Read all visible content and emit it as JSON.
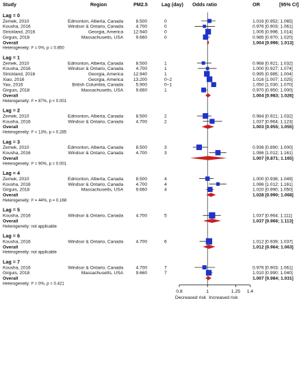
{
  "chart_data": {
    "type": "forest",
    "columns": {
      "study": "Study",
      "region": "Region",
      "pm": "PM2.5",
      "lag": "Lag (day)",
      "plot": "Odds ratio",
      "or": "OR",
      "ci": "[95% CI]"
    },
    "overall_label": "Overall",
    "heterogeneity_label": "Heterogeneity:",
    "x_scale": "log",
    "x_range": [
      0.75,
      1.42
    ],
    "x_ticks": [
      {
        "value": 0.8,
        "label": "0.8"
      },
      {
        "value": 1,
        "label": "1"
      },
      {
        "value": 1.25,
        "label": "1.25"
      },
      {
        "value": 1.4,
        "label": "1.4"
      }
    ],
    "reference_line": 1,
    "left_direction_label": "Decreased risk",
    "right_direction_label": "Increased risk",
    "colors": {
      "study_box": "#1f33c8",
      "overall_diamond": "#cc1f1f"
    },
    "groups": [
      {
        "title": "Lag = 0",
        "studies": [
          {
            "study": "Zemek, 2010",
            "region": "Edmonton, Alberta, Canada",
            "pm": "8.500",
            "lag": "0",
            "or": 1.016,
            "lo": 0.952,
            "hi": 1.065,
            "ci_text": "1.016 [0.952; 1.065]",
            "weight": 0.25
          },
          {
            "study": "Kousha, 2016",
            "region": "Windsor & Ontario, Canada",
            "pm": "4.700",
            "lag": "0",
            "or": 0.976,
            "lo": 0.903,
            "hi": 1.061,
            "ci_text": "0.976 [0.903; 1.061]",
            "weight": 0.12
          },
          {
            "study": "Strickland, 2016",
            "region": "Georgia, America",
            "pm": "12.940",
            "lag": "0",
            "or": 1.005,
            "lo": 0.996,
            "hi": 1.014,
            "ci_text": "1.005 [0.996; 1.014]",
            "weight": 0.75
          },
          {
            "study": "Girguis, 2018",
            "region": "Massachusetts, USA",
            "pm": "9.660",
            "lag": "0",
            "or": 0.985,
            "lo": 0.97,
            "hi": 1.02,
            "ci_text": "0.985 [0.970; 1.020]",
            "weight": 0.6
          }
        ],
        "overall": {
          "or": 1.004,
          "lo": 0.996,
          "hi": 1.013,
          "ci_text": "1.004 [0.996; 1.013]"
        },
        "heterogeneity": "I² = 0%, p = 0.850"
      },
      {
        "title": "Lag = 1",
        "studies": [
          {
            "study": "Zemek, 2010",
            "region": "Edmonton, Alberta, Canada",
            "pm": "8.500",
            "lag": "1",
            "or": 0.968,
            "lo": 0.921,
            "hi": 1.032,
            "ci_text": "0.968 [0.921; 1.032]",
            "weight": 0.15
          },
          {
            "study": "Kousha, 2016",
            "region": "Windsor & Ontario, Canada",
            "pm": "4.700",
            "lag": "1",
            "or": 1.0,
            "lo": 0.927,
            "hi": 1.074,
            "ci_text": "1.000 [0.927; 1.074]",
            "weight": 0.1
          },
          {
            "study": "Strickland, 2016",
            "region": "Georgia, America",
            "pm": "12.940",
            "lag": "1",
            "or": 0.995,
            "lo": 0.985,
            "hi": 1.004,
            "ci_text": "0.995 [0.985; 1.004]",
            "weight": 0.75
          },
          {
            "study": "Xiao, 2016",
            "region": "Georgia, America",
            "pm": "13.200",
            "lag": "0~2",
            "or": 1.016,
            "lo": 1.007,
            "hi": 1.025,
            "ci_text": "1.016 [1.007; 1.025]",
            "weight": 0.75
          },
          {
            "study": "Yao, 2016",
            "region": "British Columbia, Canada",
            "pm": "5.900",
            "lag": "0~1",
            "or": 1.05,
            "lo": 1.03,
            "hi": 1.07,
            "ci_text": "1.050 [1.030; 1.070]",
            "weight": 0.5
          },
          {
            "study": "Girguis, 2018",
            "region": "Massachusetts, USA",
            "pm": "9.660",
            "lag": "1",
            "or": 0.97,
            "lo": 0.95,
            "hi": 1.0,
            "ci_text": "0.970 [0.950; 1.000]",
            "weight": 0.45
          }
        ],
        "overall": {
          "or": 1.004,
          "lo": 0.983,
          "hi": 1.026,
          "ci_text": "1.004 [0.983; 1.026]"
        },
        "heterogeneity": "I² = 87%, p < 0.001"
      },
      {
        "title": "Lag = 2",
        "studies": [
          {
            "study": "Zemek, 2010",
            "region": "Edmonton, Alberta, Canada",
            "pm": "8.500",
            "lag": "2",
            "or": 0.984,
            "lo": 0.921,
            "hi": 1.032,
            "ci_text": "0.984 [0.921; 1.032]",
            "weight": 0.7
          },
          {
            "study": "Kousha, 2016",
            "region": "Windsor & Ontario, Canada",
            "pm": "4.700",
            "lag": "2",
            "or": 1.037,
            "lo": 0.964,
            "hi": 1.123,
            "ci_text": "1.037 [0.964; 1.123]",
            "weight": 0.5
          }
        ],
        "overall": {
          "or": 1.003,
          "lo": 0.955,
          "hi": 1.055,
          "ci_text": "1.003 [0.955; 1.055]"
        },
        "heterogeneity": "I² = 13%, p = 0.285"
      },
      {
        "title": "Lag = 3",
        "studies": [
          {
            "study": "Zemek, 2010",
            "region": "Edmonton, Alberta, Canada",
            "pm": "8.500",
            "lag": "3",
            "or": 0.936,
            "lo": 0.89,
            "hi": 1.0,
            "ci_text": "0.936 [0.890; 1.000]",
            "weight": 0.7
          },
          {
            "study": "Kousha, 2016",
            "region": "Windsor & Ontario, Canada",
            "pm": "4.700",
            "lag": "3",
            "or": 1.086,
            "lo": 1.012,
            "hi": 1.161,
            "ci_text": "1.086 [1.012; 1.161]",
            "weight": 0.6
          }
        ],
        "overall": {
          "or": 1.007,
          "lo": 0.871,
          "hi": 1.165,
          "ci_text": "1.007 [0.871; 1.165]"
        },
        "heterogeneity": "I² = 90%, p = 0.001"
      },
      {
        "title": "Lag = 4",
        "studies": [
          {
            "study": "Zemek, 2010",
            "region": "Edmonton, Alberta, Canada",
            "pm": "8.500",
            "lag": "4",
            "or": 1.0,
            "lo": 0.936,
            "hi": 1.049,
            "ci_text": "1.000 [0.936; 1.049]",
            "weight": 0.35
          },
          {
            "study": "Kousha, 2016",
            "region": "Windsor & Ontario, Canada",
            "pm": "4.700",
            "lag": "4",
            "or": 1.086,
            "lo": 1.012,
            "hi": 1.161,
            "ci_text": "1.086 [1.012; 1.161]",
            "weight": 0.15
          },
          {
            "study": "Girguis, 2018",
            "region": "Massachusetts, USA",
            "pm": "9.660",
            "lag": "4",
            "or": 1.02,
            "lo": 0.99,
            "hi": 1.05,
            "ci_text": "1.020 [0.990; 1.050]",
            "weight": 0.55
          }
        ],
        "overall": {
          "or": 1.028,
          "lo": 0.99,
          "hi": 1.068,
          "ci_text": "1.028 [0.990; 1.068]"
        },
        "heterogeneity": "I² = 44%, p = 0.168"
      },
      {
        "title": "Lag = 5",
        "studies": [
          {
            "study": "Kousha, 2016",
            "region": "Windsor & Ontario, Canada",
            "pm": "4.700",
            "lag": "5",
            "or": 1.037,
            "lo": 0.964,
            "hi": 1.111,
            "ci_text": "1.037 [0.964; 1.111]",
            "weight": 1.0
          }
        ],
        "overall": {
          "or": 1.037,
          "lo": 0.966,
          "hi": 1.113,
          "ci_text": "1.037 [0.966; 1.113]"
        },
        "heterogeneity": "not applicable"
      },
      {
        "title": "Lag = 6",
        "studies": [
          {
            "study": "Kousha, 2016",
            "region": "Windsor & Ontario, Canada",
            "pm": "4.700",
            "lag": "6",
            "or": 1.012,
            "lo": 0.939,
            "hi": 1.037,
            "ci_text": "1.012 [0.939; 1.037]",
            "weight": 1.0
          }
        ],
        "overall": {
          "or": 1.012,
          "lo": 0.964,
          "hi": 1.063,
          "ci_text": "1.012 [0.964; 1.063]"
        },
        "heterogeneity": "not applicable"
      },
      {
        "title": "Lag = 7",
        "studies": [
          {
            "study": "Kousha, 2016",
            "region": "Windsor & Ontario, Canada",
            "pm": "4.700",
            "lag": "7",
            "or": 0.976,
            "lo": 0.903,
            "hi": 1.061,
            "ci_text": "0.976 [0.903; 1.061]",
            "weight": 0.3
          },
          {
            "study": "Girguis, 2018",
            "region": "Massachusetts, USA",
            "pm": "9.660",
            "lag": "7",
            "or": 1.01,
            "lo": 0.99,
            "hi": 1.04,
            "ci_text": "1.010 [0.990; 1.040]",
            "weight": 0.75
          }
        ],
        "overall": {
          "or": 1.007,
          "lo": 0.984,
          "hi": 1.031,
          "ci_text": "1.007 [0.984; 1.031]"
        },
        "heterogeneity": "I² = 0%, p = 0.421"
      }
    ]
  }
}
